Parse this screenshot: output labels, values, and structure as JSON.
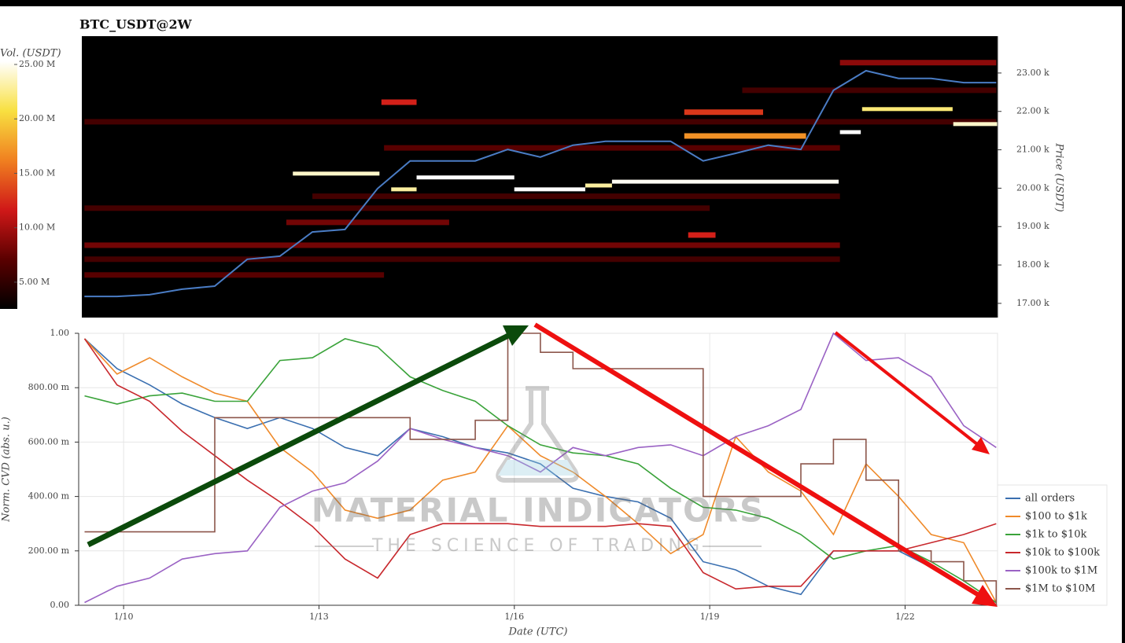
{
  "chart_data": [
    {
      "type": "heatmap",
      "title": "BTC_USDT@2W",
      "x": [
        9.4,
        9.9,
        10.4,
        10.9,
        11.4,
        11.9,
        12.4,
        12.9,
        13.4,
        13.9,
        14.4,
        14.9,
        15.4,
        15.9,
        16.4,
        16.9,
        17.4,
        17.9,
        18.4,
        18.9,
        19.4,
        19.9,
        20.4,
        20.9,
        21.4,
        21.9,
        22.4,
        22.9,
        23.4
      ],
      "price": {
        "color": "#4a7cc4",
        "values": [
          17180,
          17180,
          17225,
          17370,
          17450,
          18150,
          18230,
          18860,
          18925,
          19990,
          20710,
          20710,
          20710,
          21010,
          20810,
          21120,
          21220,
          21220,
          21220,
          20710,
          20910,
          21120,
          21010,
          22550,
          23060,
          22860,
          22860,
          22750,
          22750
        ]
      },
      "levels": [
        {
          "x": [
            9.4,
            19.0
          ],
          "price": 19480,
          "volume": 6000000
        },
        {
          "x": [
            9.4,
            21.0
          ],
          "price": 18515,
          "volume": 8000000
        },
        {
          "x": [
            9.4,
            21.0
          ],
          "price": 18150,
          "volume": 6000000
        },
        {
          "x": [
            9.4,
            14.0
          ],
          "price": 17740,
          "volume": 7000000
        },
        {
          "x": [
            14.0,
            21.0
          ],
          "price": 21050,
          "volume": 7000000
        },
        {
          "x": [
            12.9,
            21.0
          ],
          "price": 19790,
          "volume": 6000000
        },
        {
          "x": [
            12.5,
            15.0
          ],
          "price": 19110,
          "volume": 8000000
        },
        {
          "x": [
            21.0,
            23.4
          ],
          "price": 23270,
          "volume": 9000000
        },
        {
          "x": [
            19.5,
            23.4
          ],
          "price": 22550,
          "volume": 6000000
        },
        {
          "x": [
            9.4,
            23.4
          ],
          "price": 21730,
          "volume": 6000000
        },
        {
          "x": [
            18.61,
            20.48
          ],
          "price": 21360,
          "volume": 17000000
        },
        {
          "x": [
            18.61,
            19.82
          ],
          "price": 21980,
          "volume": 13000000
        },
        {
          "x": [
            13.96,
            14.5
          ],
          "price": 22240,
          "volume": 12000000
        },
        {
          "x": [
            18.67,
            19.09
          ],
          "price": 18780,
          "volume": 12000000
        },
        {
          "x": [
            12.6,
            13.93
          ],
          "price": 20380,
          "volume": 24000000
        },
        {
          "x": [
            14.11,
            14.5
          ],
          "price": 19970,
          "volume": 23000000
        },
        {
          "x": [
            14.5,
            16.0
          ],
          "price": 20280,
          "volume": 26000000
        },
        {
          "x": [
            16.0,
            17.09
          ],
          "price": 19970,
          "volume": 26000000
        },
        {
          "x": [
            17.09,
            17.5
          ],
          "price": 20070,
          "volume": 23000000
        },
        {
          "x": [
            17.5,
            20.98
          ],
          "price": 20170,
          "volume": 25000000
        },
        {
          "x": [
            21.0,
            21.32
          ],
          "price": 21460,
          "volume": 26000000
        },
        {
          "x": [
            21.34,
            22.73
          ],
          "price": 22060,
          "volume": 22000000
        },
        {
          "x": [
            22.74,
            23.42
          ],
          "price": 21670,
          "volume": 24000000
        }
      ],
      "xlim": [
        9.36,
        23.42
      ],
      "ylim": [
        16630,
        23960
      ],
      "yticks": [
        {
          "value": 17000,
          "label": "17.00 k"
        },
        {
          "value": 18000,
          "label": "18.00 k"
        },
        {
          "value": 19000,
          "label": "19.00 k"
        },
        {
          "value": 20000,
          "label": "20.00 k"
        },
        {
          "value": 21000,
          "label": "21.00 k"
        },
        {
          "value": 22000,
          "label": "22.00 k"
        },
        {
          "value": 23000,
          "label": "23.00 k"
        }
      ],
      "ylabel": "Price (USDT)",
      "colormap": [
        "#000000",
        "#5a0000",
        "#d01818",
        "#f08020",
        "#f8e040",
        "#ffffff"
      ],
      "colorbar": {
        "label": "Vol. (USDT)",
        "lim": [
          2540000,
          25290000
        ],
        "ticks": [
          {
            "value": 5000000,
            "label": "5.00 M"
          },
          {
            "value": 10000000,
            "label": "10.00 M"
          },
          {
            "value": 15000000,
            "label": "15.00 M"
          },
          {
            "value": 20000000,
            "label": "20.00 M"
          },
          {
            "value": 25000000,
            "label": "25.00 M"
          }
        ]
      }
    },
    {
      "type": "line",
      "x": [
        9.4,
        9.9,
        10.4,
        10.9,
        11.4,
        11.9,
        12.4,
        12.9,
        13.4,
        13.9,
        14.4,
        14.9,
        15.4,
        15.9,
        16.4,
        16.9,
        17.4,
        17.9,
        18.4,
        18.9,
        19.4,
        19.9,
        20.4,
        20.9,
        21.4,
        21.9,
        22.4,
        22.9,
        23.4
      ],
      "series": [
        {
          "name": "all orders",
          "color": "#3a6fb0",
          "values": [
            0.98,
            0.87,
            0.81,
            0.74,
            0.69,
            0.65,
            0.69,
            0.65,
            0.58,
            0.55,
            0.65,
            0.62,
            0.58,
            0.56,
            0.52,
            0.43,
            0.4,
            0.38,
            0.32,
            0.16,
            0.13,
            0.07,
            0.04,
            0.2,
            0.2,
            0.2,
            0.14,
            0.07,
            0.01
          ]
        },
        {
          "name": "$100 to $1k",
          "color": "#ef8a2a",
          "values": [
            0.98,
            0.85,
            0.91,
            0.84,
            0.78,
            0.75,
            0.58,
            0.49,
            0.35,
            0.32,
            0.35,
            0.46,
            0.49,
            0.66,
            0.55,
            0.49,
            0.4,
            0.3,
            0.19,
            0.26,
            0.62,
            0.49,
            0.42,
            0.26,
            0.52,
            0.4,
            0.26,
            0.23,
            0.01
          ]
        },
        {
          "name": "$1k to $10k",
          "color": "#3aa33a",
          "values": [
            0.77,
            0.74,
            0.77,
            0.78,
            0.75,
            0.75,
            0.9,
            0.91,
            0.98,
            0.95,
            0.84,
            0.79,
            0.75,
            0.66,
            0.59,
            0.56,
            0.55,
            0.52,
            0.43,
            0.36,
            0.35,
            0.32,
            0.26,
            0.17,
            0.2,
            0.22,
            0.16,
            0.09,
            0.01
          ]
        },
        {
          "name": "$10k to $100k",
          "color": "#c8282d",
          "values": [
            0.98,
            0.81,
            0.75,
            0.64,
            0.55,
            0.46,
            0.38,
            0.29,
            0.17,
            0.1,
            0.26,
            0.3,
            0.3,
            0.3,
            0.29,
            0.29,
            0.29,
            0.3,
            0.29,
            0.12,
            0.06,
            0.07,
            0.07,
            0.2,
            0.2,
            0.2,
            0.23,
            0.26,
            0.3
          ]
        },
        {
          "name": "$100k to $1M",
          "color": "#9a62c4",
          "values": [
            0.01,
            0.07,
            0.1,
            0.17,
            0.19,
            0.2,
            0.36,
            0.42,
            0.45,
            0.53,
            0.65,
            0.61,
            0.58,
            0.55,
            0.49,
            0.58,
            0.55,
            0.58,
            0.59,
            0.55,
            0.62,
            0.66,
            0.72,
            1.0,
            0.9,
            0.91,
            0.84,
            0.66,
            0.58
          ]
        },
        {
          "name": "$1M to $10M",
          "color": "#8c564b",
          "shape": "step",
          "values": [
            0.27,
            0.27,
            0.27,
            0.27,
            0.69,
            0.69,
            0.69,
            0.69,
            0.69,
            0.69,
            0.61,
            0.61,
            0.68,
            1.0,
            0.93,
            0.87,
            0.87,
            0.87,
            0.87,
            0.4,
            0.4,
            0.4,
            0.52,
            0.61,
            0.46,
            0.2,
            0.16,
            0.09,
            0.0
          ]
        }
      ],
      "xlim": [
        9.31,
        23.42
      ],
      "ylim": [
        0,
        1
      ],
      "xticks": [
        {
          "value": 10,
          "label": "1/10"
        },
        {
          "value": 13,
          "label": "1/13"
        },
        {
          "value": 16,
          "label": "1/16"
        },
        {
          "value": 19,
          "label": "1/19"
        },
        {
          "value": 22,
          "label": "1/22"
        }
      ],
      "yticks": [
        {
          "value": 0,
          "label": "0.00"
        },
        {
          "value": 0.2,
          "label": "200.00 m"
        },
        {
          "value": 0.4,
          "label": "400.00 m"
        },
        {
          "value": 0.6,
          "label": "600.00 m"
        },
        {
          "value": 0.8,
          "label": "800.00 m"
        },
        {
          "value": 1,
          "label": "1.00"
        }
      ],
      "xlabel": "Date (UTC)",
      "ylabel": "Norm. CVD (abs. u.)",
      "grid": true,
      "legend": "lower right",
      "watermark": [
        "MATERIAL INDICATORS",
        "THE SCIENCE OF TRADING"
      ]
    }
  ]
}
